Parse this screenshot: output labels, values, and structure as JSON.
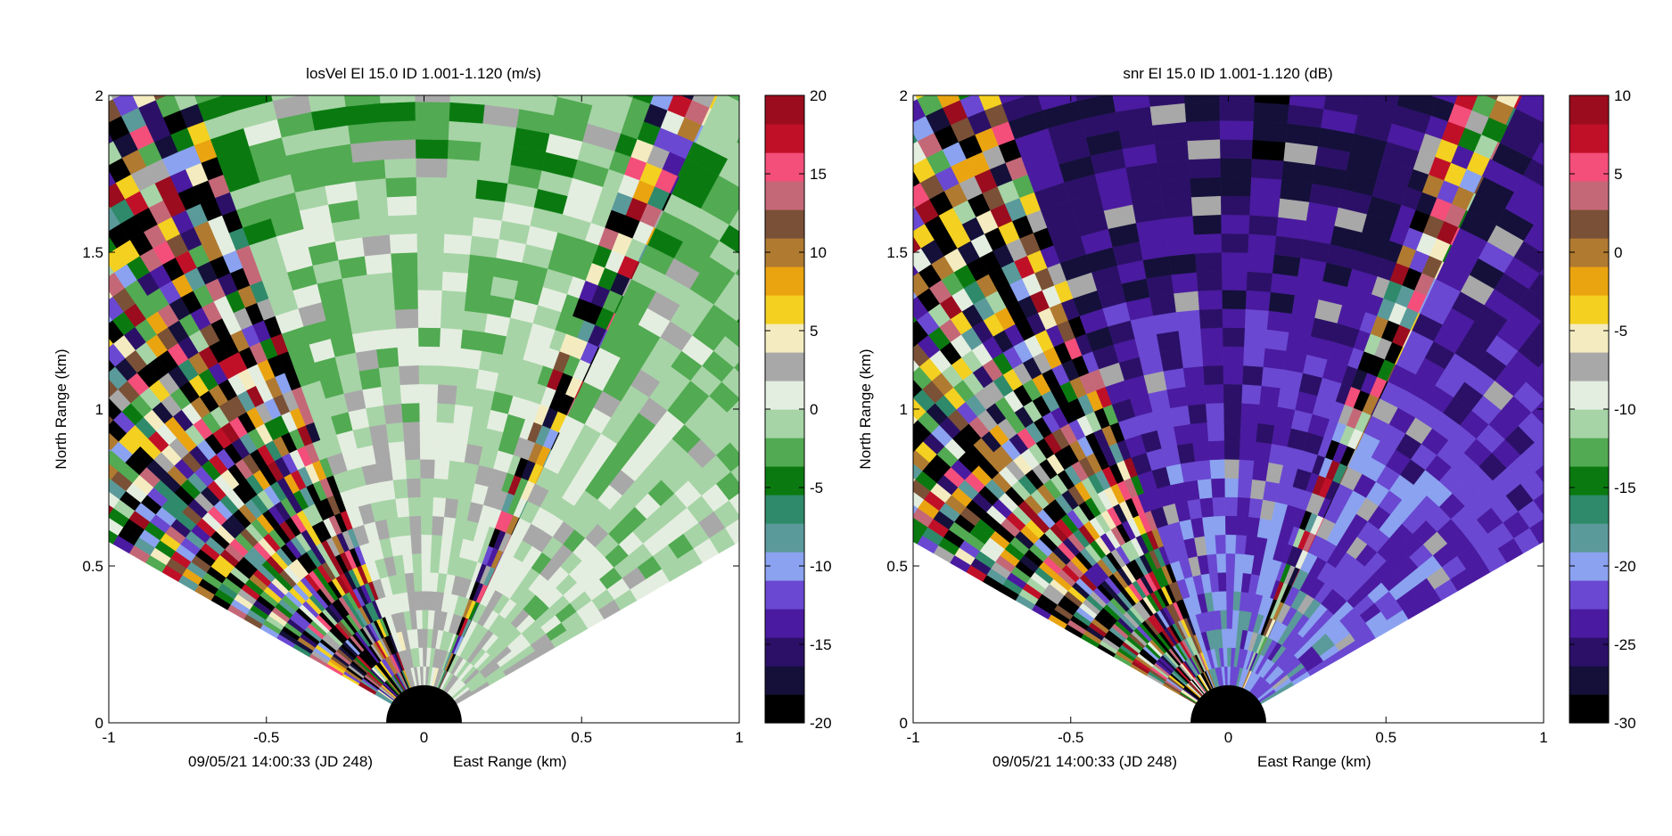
{
  "chart_data": [
    {
      "type": "heatmap",
      "subtype": "polar-ppi",
      "title": "losVel    El 15.0    ID 1.001-1.120    (m/s)",
      "footer_time": "09/05/21 14:00:33 (JD 248)",
      "xlabel": "East Range (km)",
      "ylabel": "North Range (km)",
      "xlim": [
        -1,
        1
      ],
      "ylim": [
        0,
        2
      ],
      "x_ticks": [
        "-1",
        "-0.5",
        "0",
        "0.5",
        "1"
      ],
      "y_ticks": [
        "0",
        "0.5",
        "1",
        "1.5",
        "2"
      ],
      "colorbar": {
        "min": -20,
        "max": 20,
        "ticks": [
          "-20",
          "-15",
          "-10",
          "-5",
          "0",
          "5",
          "10",
          "15",
          "20"
        ]
      },
      "sectors": [
        {
          "az_from": -60,
          "az_to": -20,
          "pattern": "noisy",
          "level": 0
        },
        {
          "az_from": -20,
          "az_to": 20,
          "pattern": "clear",
          "level": 2,
          "near_level": 2,
          "far_level": -2
        },
        {
          "az_from": 20,
          "az_to": 25,
          "pattern": "noisy",
          "level": 0
        },
        {
          "az_from": 25,
          "az_to": 60,
          "pattern": "clear",
          "level": -2,
          "near_level": 1,
          "far_level": -2
        }
      ],
      "missing_color": "#a8a8a8",
      "blank_radius_km": 0.12
    },
    {
      "type": "heatmap",
      "subtype": "polar-ppi",
      "title": "snr    El 15.0    ID 1.001-1.120    (dB)",
      "footer_time": "09/05/21 14:00:33 (JD 248)",
      "xlabel": "East Range (km)",
      "ylabel": "North Range (km)",
      "xlim": [
        -1,
        1
      ],
      "ylim": [
        0,
        2
      ],
      "x_ticks": [
        "-1",
        "-0.5",
        "0",
        "0.5",
        "1"
      ],
      "y_ticks": [
        "0",
        "0.5",
        "1",
        "1.5",
        "2"
      ],
      "colorbar": {
        "min": -30,
        "max": 10,
        "ticks": [
          "-30",
          "-25",
          "-20",
          "-15",
          "-10",
          "-5",
          "0",
          "5",
          "10"
        ]
      },
      "sectors": [
        {
          "az_from": -60,
          "az_to": -20,
          "pattern": "noisy",
          "level": -29
        },
        {
          "az_from": -20,
          "az_to": 20,
          "pattern": "clear",
          "level": -22,
          "near_level": -20,
          "far_level": -26
        },
        {
          "az_from": 20,
          "az_to": 25,
          "pattern": "noisy",
          "level": -29
        },
        {
          "az_from": 25,
          "az_to": 60,
          "pattern": "clear",
          "level": -22,
          "near_level": -20,
          "far_level": -25
        }
      ],
      "missing_color": "#a8a8a8",
      "blank_radius_km": 0.12
    }
  ],
  "colormap": [
    "#000000",
    "#14103a",
    "#2c1068",
    "#4a1aa0",
    "#6a48d2",
    "#8aa2f0",
    "#5a9a9a",
    "#2e8a6a",
    "#0a7a10",
    "#52aa52",
    "#a6d4a6",
    "#e4eee0",
    "#a8a8a8",
    "#f4ecc0",
    "#f4d020",
    "#eaa410",
    "#b07a30",
    "#7a5036",
    "#c46878",
    "#f44e7a",
    "#c01028",
    "#9a0c1e"
  ]
}
